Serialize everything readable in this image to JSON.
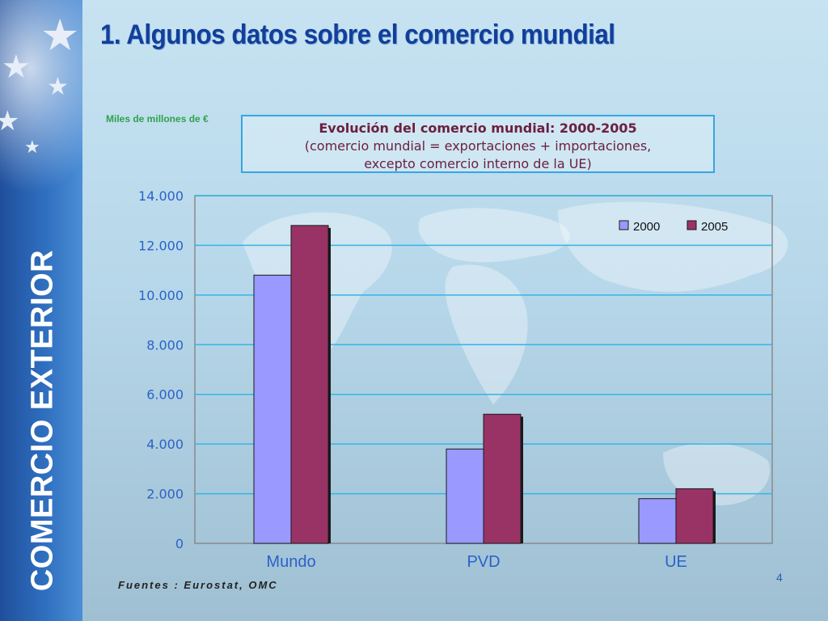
{
  "slide": {
    "title": "1. Algunos datos sobre el comercio mundial",
    "sidebar_title": "COMERCIO EXTERIOR",
    "unit_label": "Miles de millones de €",
    "source": "Fuentes : Eurostat, OMC",
    "page_number": "4"
  },
  "chart_title": {
    "line1": "Evolución del comercio mundial: 2000-2005",
    "line2": "(comercio mundial = exportaciones + importaciones,",
    "line3": "excepto comercio interno de la UE)"
  },
  "chart_data": {
    "type": "bar",
    "categories": [
      "Mundo",
      "PVD",
      "UE"
    ],
    "series": [
      {
        "name": "2000",
        "values": [
          10800,
          3800,
          1800
        ],
        "color": "#9999ff"
      },
      {
        "name": "2005",
        "values": [
          12800,
          5200,
          2200
        ],
        "color": "#993366"
      }
    ],
    "ylim": [
      0,
      14000
    ],
    "yticks": [
      0,
      2000,
      4000,
      6000,
      8000,
      10000,
      12000,
      14000
    ],
    "ytick_labels": [
      "0",
      "2.000",
      "4.000",
      "6.000",
      "8.000",
      "10.000",
      "12.000",
      "14.000"
    ],
    "grid": true,
    "legend_position": "top-right",
    "gridline_color": "#33b5e5",
    "category_label_color": "#2a62c8"
  }
}
